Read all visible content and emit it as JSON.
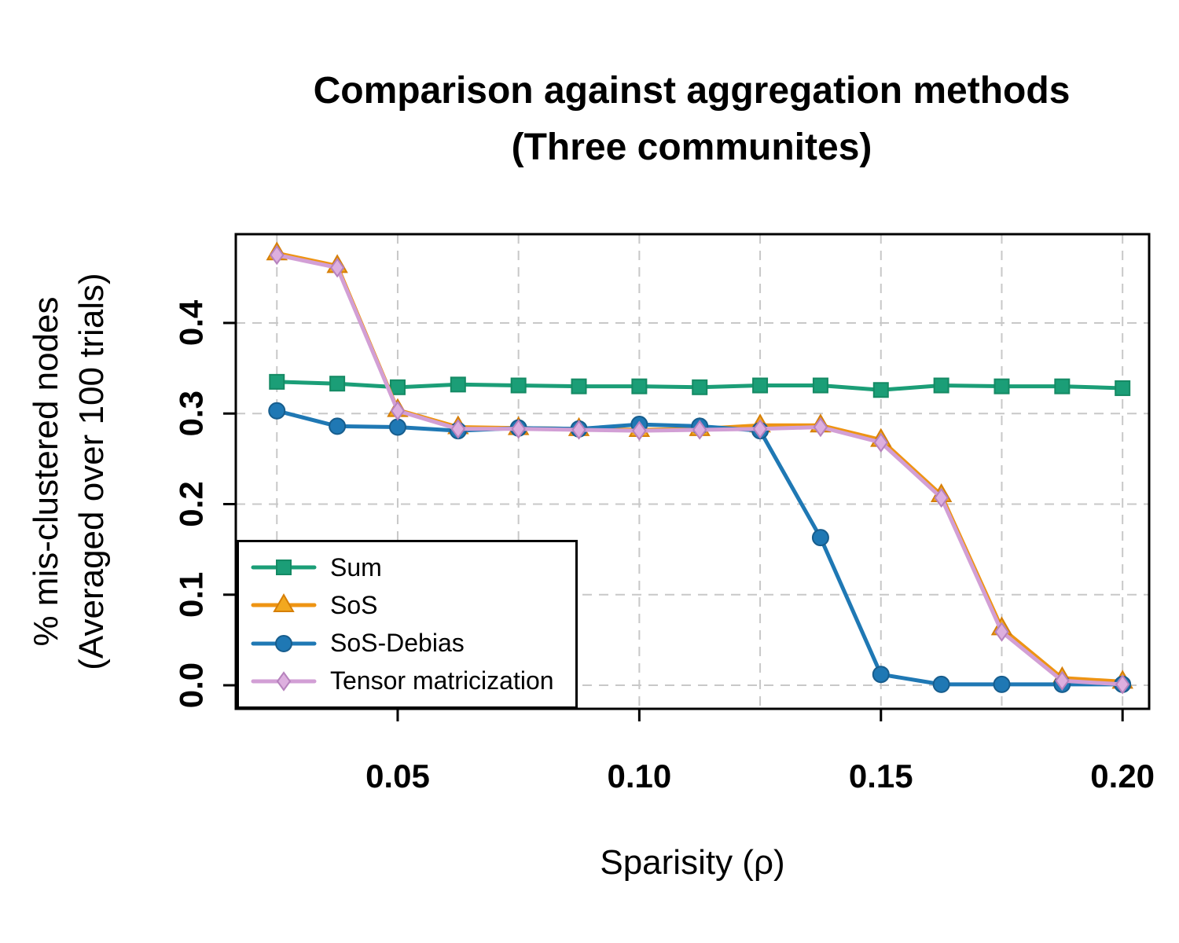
{
  "chart_data": {
    "type": "line",
    "title": "Comparison against aggregation methods (Three communites)",
    "xlabel": "Sparisity (ρ)",
    "ylabel": "% mis-clustered nodes (Averaged over 100 trials)",
    "ylabel_lines": [
      "% mis-clustered nodes",
      "(Averaged over 100 trials)"
    ],
    "x": [
      0.025,
      0.0375,
      0.05,
      0.0625,
      0.075,
      0.0875,
      0.1,
      0.1125,
      0.125,
      0.1375,
      0.15,
      0.1625,
      0.175,
      0.1875,
      0.2
    ],
    "series": [
      {
        "name": "Sum",
        "color": "#1b9e77",
        "edge": "#158a64",
        "marker": "square",
        "values": [
          0.335,
          0.333,
          0.329,
          0.332,
          0.331,
          0.33,
          0.33,
          0.329,
          0.331,
          0.331,
          0.326,
          0.331,
          0.33,
          0.33,
          0.328
        ]
      },
      {
        "name": "SoS",
        "color": "#ee9413",
        "fill": "#f2a81f",
        "edge": "#d67f08",
        "marker": "triangle",
        "values": [
          0.477,
          0.463,
          0.304,
          0.285,
          0.284,
          0.283,
          0.282,
          0.283,
          0.287,
          0.287,
          0.271,
          0.21,
          0.063,
          0.008,
          0.004
        ]
      },
      {
        "name": "SoS-Debias",
        "color": "#1f78b4",
        "edge": "#175d8d",
        "marker": "circle",
        "values": [
          0.303,
          0.286,
          0.285,
          0.281,
          0.284,
          0.283,
          0.288,
          0.286,
          0.281,
          0.163,
          0.012,
          0.001,
          0.001,
          0.001,
          0.001
        ]
      },
      {
        "name": "Tensor matricization",
        "color": "#d29fd5",
        "fill": "#ddafdf",
        "edge": "#b682bd",
        "marker": "diamond",
        "values": [
          0.475,
          0.461,
          0.303,
          0.283,
          0.283,
          0.282,
          0.281,
          0.282,
          0.283,
          0.285,
          0.268,
          0.207,
          0.059,
          0.005,
          0.001
        ]
      }
    ],
    "xlim": [
      0.0165,
      0.2055
    ],
    "ylim": [
      -0.026,
      0.498
    ],
    "xticks": [
      0.05,
      0.1,
      0.15,
      0.2
    ],
    "xtick_labels": [
      "0.05",
      "0.10",
      "0.15",
      "0.20"
    ],
    "yticks": [
      0.0,
      0.1,
      0.2,
      0.3,
      0.4
    ],
    "ytick_labels": [
      "0.0",
      "0.1",
      "0.2",
      "0.3",
      "0.4"
    ],
    "grid_x": [
      0.025,
      0.05,
      0.075,
      0.1,
      0.125,
      0.15,
      0.175,
      0.2
    ],
    "grid_y": [
      0.0,
      0.1,
      0.2,
      0.3,
      0.4
    ],
    "grid": true,
    "legend_position": "bottom-left",
    "legend": [
      "Sum",
      "SoS",
      "SoS-Debias",
      "Tensor matricization"
    ]
  },
  "colors": {
    "background": "#ffffff",
    "grid": "#c8c8c8",
    "axis": "#000000"
  }
}
